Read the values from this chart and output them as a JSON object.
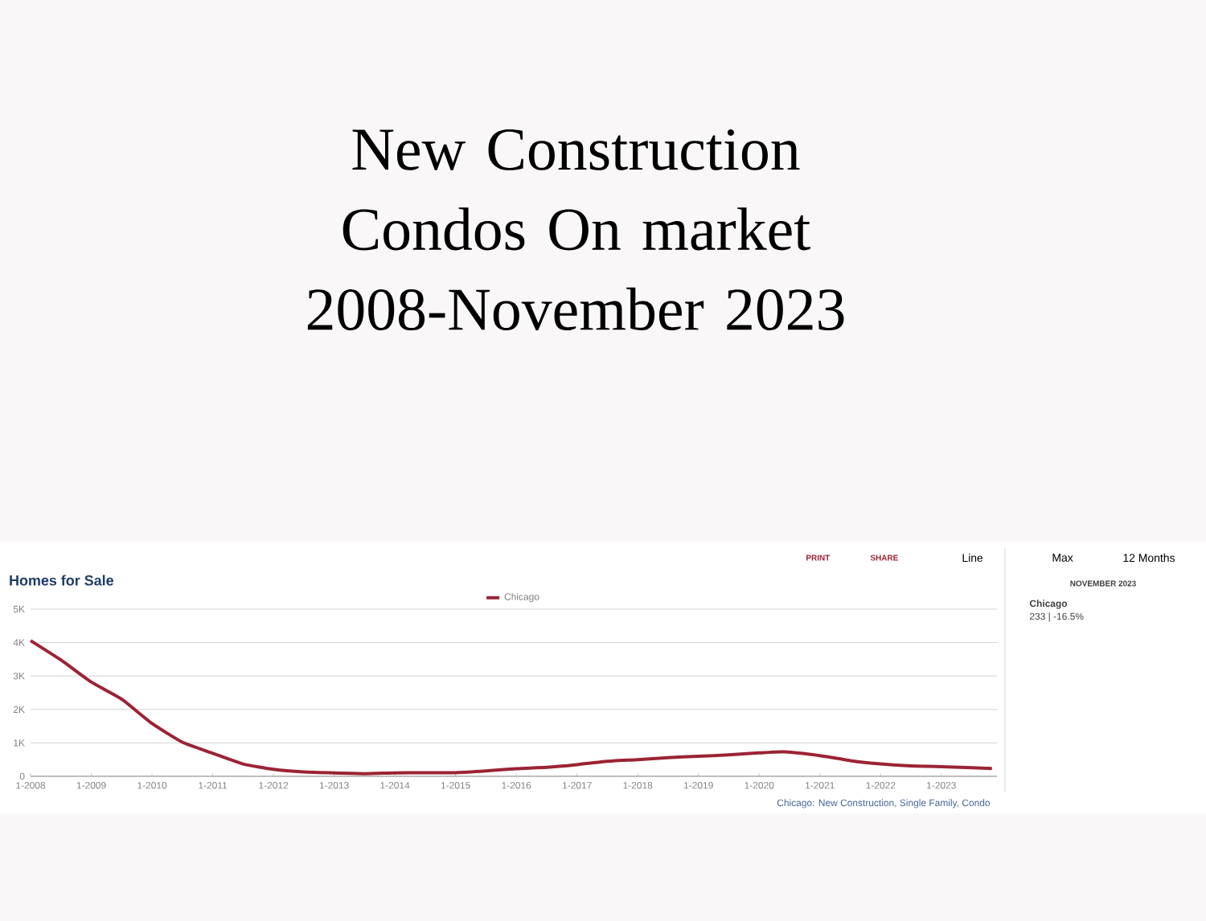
{
  "chart_data": {
    "type": "line",
    "title": "New Construction Condos On market 2008-November 2023",
    "subtitle": "Homes for Sale",
    "x": [
      "2008-01",
      "2008-07",
      "2009-01",
      "2009-07",
      "2010-01",
      "2010-07",
      "2011-01",
      "2011-07",
      "2012-01",
      "2012-07",
      "2013-01",
      "2013-07",
      "2014-01",
      "2014-07",
      "2015-01",
      "2015-07",
      "2016-01",
      "2016-07",
      "2017-01",
      "2017-07",
      "2018-01",
      "2018-07",
      "2019-01",
      "2019-07",
      "2020-01",
      "2020-06",
      "2021-01",
      "2021-07",
      "2022-01",
      "2022-07",
      "2023-01",
      "2023-11"
    ],
    "series": [
      {
        "name": "Chicago",
        "color": "#9b2335",
        "values": [
          4060,
          3480,
          2820,
          2310,
          1580,
          1020,
          690,
          370,
          210,
          130,
          100,
          80,
          100,
          110,
          110,
          160,
          230,
          270,
          350,
          450,
          500,
          560,
          600,
          640,
          700,
          730,
          620,
          470,
          370,
          310,
          290,
          233
        ]
      }
    ],
    "xlim": [
      "2008-01",
      "2023-12"
    ],
    "xticks": [
      {
        "value": "2008-01",
        "label": "1-2008"
      },
      {
        "value": "2009-01",
        "label": "1-2009"
      },
      {
        "value": "2010-01",
        "label": "1-2010"
      },
      {
        "value": "2011-01",
        "label": "1-2011"
      },
      {
        "value": "2012-01",
        "label": "1-2012"
      },
      {
        "value": "2013-01",
        "label": "1-2013"
      },
      {
        "value": "2014-01",
        "label": "1-2014"
      },
      {
        "value": "2015-01",
        "label": "1-2015"
      },
      {
        "value": "2016-01",
        "label": "1-2016"
      },
      {
        "value": "2017-01",
        "label": "1-2017"
      },
      {
        "value": "2018-01",
        "label": "1-2018"
      },
      {
        "value": "2019-01",
        "label": "1-2019"
      },
      {
        "value": "2020-01",
        "label": "1-2020"
      },
      {
        "value": "2021-01",
        "label": "1-2021"
      },
      {
        "value": "2022-01",
        "label": "1-2022"
      },
      {
        "value": "2023-01",
        "label": "1-2023"
      }
    ],
    "ylim": [
      0,
      5000
    ],
    "yticks": [
      0,
      {
        "value": 1000,
        "label": "1K"
      },
      {
        "value": 2000,
        "label": "2K"
      },
      {
        "value": 3000,
        "label": "3K"
      },
      {
        "value": 4000,
        "label": "4K"
      },
      {
        "value": 5000,
        "label": "5K"
      }
    ],
    "grid": "y",
    "legend": "top",
    "line_style": "solid",
    "marker": "none",
    "annotations": [
      "PRINT",
      "SHARE",
      "Line",
      "Max",
      "12 Months",
      "NOVEMBER 2023",
      "Chicago",
      "233 | -16.5%",
      "Chicago: New Construction, Single Family, Condo"
    ]
  }
}
